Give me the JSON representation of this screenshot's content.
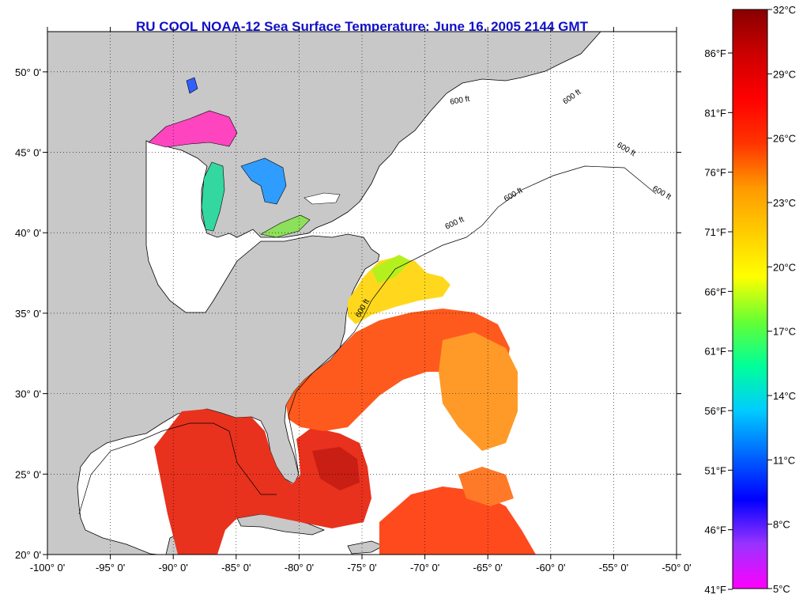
{
  "title": "RU COOL  NOAA-12  Sea Surface Temperature:  June 16, 2005 2144 GMT",
  "map": {
    "lon_range": [
      -100,
      -50
    ],
    "lat_range": [
      20,
      52.5
    ],
    "lon_ticks": [
      {
        "value": -100,
        "label": "-100° 0'"
      },
      {
        "value": -95,
        "label": "-95° 0'"
      },
      {
        "value": -90,
        "label": "-90° 0'"
      },
      {
        "value": -85,
        "label": "-85° 0'"
      },
      {
        "value": -80,
        "label": "-80° 0'"
      },
      {
        "value": -75,
        "label": "-75° 0'"
      },
      {
        "value": -70,
        "label": "-70° 0'"
      },
      {
        "value": -65,
        "label": "-65° 0'"
      },
      {
        "value": -60,
        "label": "-60° 0'"
      },
      {
        "value": -55,
        "label": "-55° 0'"
      },
      {
        "value": -50,
        "label": "-50° 0'"
      }
    ],
    "lat_ticks": [
      {
        "value": 50,
        "label": "50° 0'"
      },
      {
        "value": 45,
        "label": "45° 0'"
      },
      {
        "value": 40,
        "label": "40° 0'"
      },
      {
        "value": 35,
        "label": "35° 0'"
      },
      {
        "value": 30,
        "label": "30° 0'"
      },
      {
        "value": 25,
        "label": "25° 0'"
      },
      {
        "value": 20,
        "label": "20° 0'"
      }
    ],
    "grid": "dotted",
    "land_color": "#c8c8c8",
    "cloud_color": "#ffffff",
    "isobath_label": "600 ft"
  },
  "colorbar": {
    "celsius_range": [
      5,
      32
    ],
    "celsius_ticks": [
      "32°C",
      "29°C",
      "26°C",
      "23°C",
      "20°C",
      "17°C",
      "14°C",
      "11°C",
      "8°C",
      "5°C"
    ],
    "fahrenheit_ticks": [
      "86°F",
      "81°F",
      "76°F",
      "71°F",
      "66°F",
      "61°F",
      "56°F",
      "51°F",
      "46°F",
      "41°F"
    ],
    "colors": [
      "#ff00ff",
      "#9933ff",
      "#0000ff",
      "#0066ff",
      "#00ccff",
      "#00ff99",
      "#66ff33",
      "#ffff00",
      "#ffcc00",
      "#ff9900",
      "#ff3300",
      "#ff0000",
      "#cc0000",
      "#880000"
    ]
  }
}
